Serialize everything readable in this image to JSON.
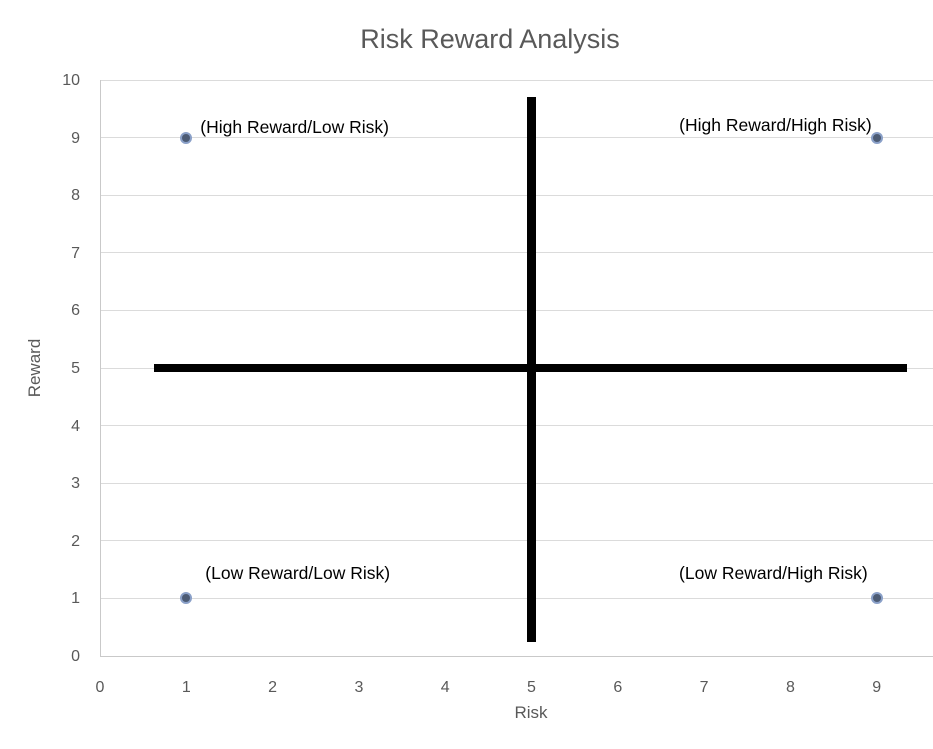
{
  "chart_data": {
    "type": "scatter",
    "title": "Risk Reward Analysis",
    "xlabel": "Risk",
    "ylabel": "Reward",
    "xlim": [
      0,
      9.65
    ],
    "ylim": [
      0,
      10
    ],
    "x_ticks": [
      0,
      1,
      2,
      3,
      4,
      5,
      6,
      7,
      8,
      9
    ],
    "y_ticks": [
      0,
      1,
      2,
      3,
      4,
      5,
      6,
      7,
      8,
      9,
      10
    ],
    "grid": "horizontal",
    "legend": "none",
    "points": [
      {
        "x": 1,
        "y": 9,
        "label": "(High Reward/Low Risk)",
        "label_side": "right"
      },
      {
        "x": 9,
        "y": 9,
        "label": "(High Reward/High Risk)",
        "label_side": "left"
      },
      {
        "x": 1,
        "y": 1,
        "label": "(Low Reward/Low Risk)",
        "label_side": "above-right"
      },
      {
        "x": 9,
        "y": 1,
        "label": "(Low Reward/High Risk)",
        "label_side": "above-left"
      }
    ],
    "divider_lines": [
      {
        "orientation": "vertical",
        "at_x": 5,
        "y_from": 0.25,
        "y_to": 9.7
      },
      {
        "orientation": "horizontal",
        "at_y": 5,
        "x_from": 0.62,
        "x_to": 9.35
      }
    ],
    "colors": {
      "marker_fill": "#4c5b74",
      "marker_edge": "#8aa0c8",
      "divider": "#000000",
      "gridline": "#dbdbdb",
      "axis_line": "#c9c9c9",
      "muted_text": "#595959",
      "label_text": "#000000",
      "background": "#ffffff"
    }
  }
}
